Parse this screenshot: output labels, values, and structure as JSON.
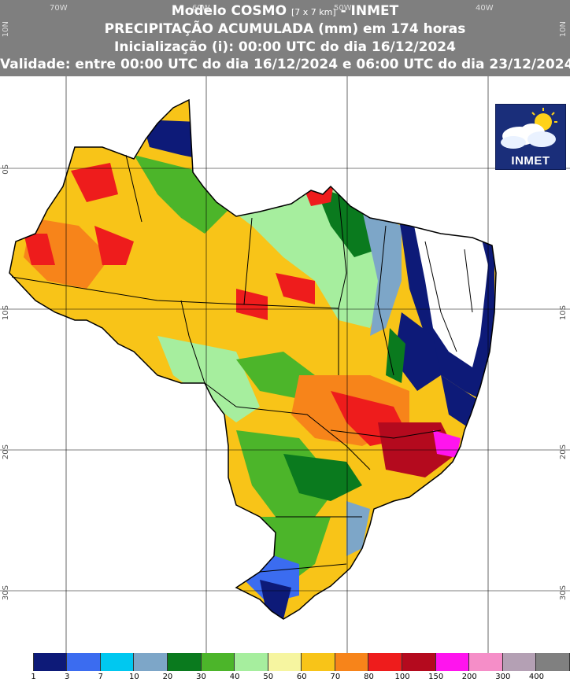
{
  "header": {
    "line1_prefix": "Modelo COSMO",
    "line1_resolution": "[7 x 7 km]",
    "line1_suffix": "- INMET",
    "line2": "PRECIPITAÇÃO ACUMULADA (mm) em 174 horas",
    "line3": "Inicialização (i): 00:00 UTC do dia 16/12/2024",
    "line4": "Validade: entre 00:00 UTC do dia 16/12/2024 e 06:00 UTC do dia 23/12/2024"
  },
  "axes": {
    "longitude_labels": [
      "70W",
      "60W",
      "50W",
      "40W"
    ],
    "latitude_labels": [
      "10N",
      "0S",
      "10S",
      "20S",
      "30S"
    ]
  },
  "logo": {
    "text": "INMET"
  },
  "legend": {
    "colors": [
      "#ffffff",
      "#0d1a78",
      "#3b6cf0",
      "#00c8f0",
      "#7da6c8",
      "#0a7a1e",
      "#4cb52a",
      "#a6ee9e",
      "#f6f5a0",
      "#f8c418",
      "#f7841a",
      "#ee1c1c",
      "#b40a1e",
      "#ff14ee",
      "#f58ec8",
      "#b4a0b4",
      "#808080"
    ],
    "labels": [
      "1",
      "3",
      "7",
      "10",
      "20",
      "30",
      "40",
      "50",
      "60",
      "70",
      "80",
      "100",
      "150",
      "200",
      "300",
      "400"
    ]
  }
}
